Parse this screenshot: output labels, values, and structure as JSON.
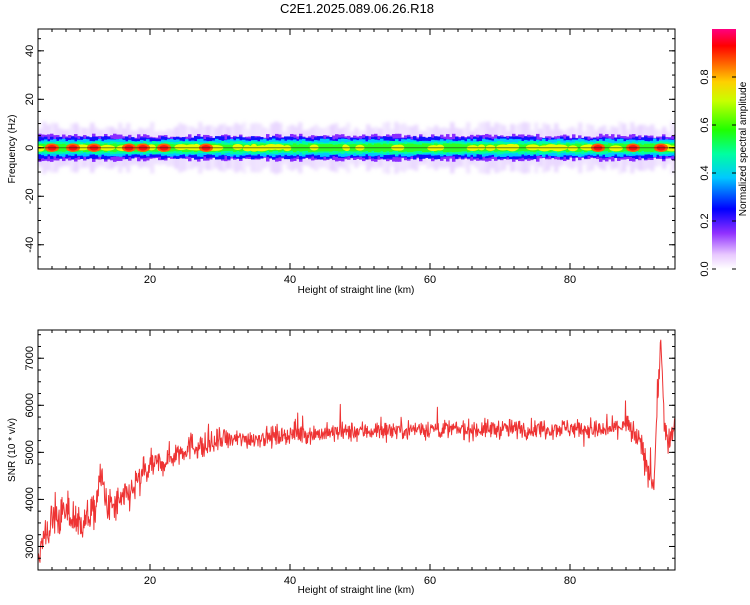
{
  "title": "C2E1.2025.089.06.26.R18",
  "chart_data": [
    {
      "type": "heatmap",
      "xlabel": "Height of straight line (km)",
      "ylabel": "Frequency (Hz)",
      "xlim": [
        4,
        95
      ],
      "ylim": [
        -50,
        49
      ],
      "xticks": [
        "20",
        "40",
        "60",
        "80"
      ],
      "xtick_values": [
        20,
        40,
        60,
        80
      ],
      "yticks": [
        "40",
        "20",
        "0",
        "-20",
        "-40"
      ],
      "ytick_values": [
        40,
        20,
        0,
        -20,
        -40
      ],
      "band_center_hz": 0,
      "band_halfwidth_hz": 3.5,
      "colorbar": {
        "label": "Normalized spectral amplitude",
        "range": [
          0,
          1
        ],
        "ticks": [
          "0.0",
          "0.2",
          "0.4",
          "0.6",
          "0.8"
        ],
        "tick_values": [
          0.0,
          0.2,
          0.4,
          0.6,
          0.8
        ]
      },
      "hotspots_km": [
        6,
        9,
        12,
        17,
        19,
        22,
        28,
        84,
        89,
        93
      ]
    },
    {
      "type": "line",
      "xlabel": "Height of straight line (km)",
      "ylabel": "SNR (10 * v/v)",
      "xlim": [
        4,
        95
      ],
      "ylim": [
        2500,
        7600
      ],
      "xticks": [
        "20",
        "40",
        "60",
        "80"
      ],
      "xtick_values": [
        20,
        40,
        60,
        80
      ],
      "yticks": [
        "3000",
        "4000",
        "5000",
        "6000",
        "7000"
      ],
      "ytick_values": [
        3000,
        4000,
        5000,
        6000,
        7000
      ],
      "color": "#ee3333",
      "x": [
        4,
        6,
        8,
        10,
        12,
        13,
        14,
        16,
        18,
        20,
        22,
        24,
        26,
        28,
        30,
        35,
        40,
        45,
        50,
        55,
        60,
        65,
        70,
        75,
        80,
        85,
        88,
        90,
        91,
        92,
        92.5,
        93,
        93.5,
        94,
        95
      ],
      "y": [
        2800,
        3550,
        3700,
        3500,
        3700,
        4500,
        3800,
        3950,
        4300,
        4700,
        4800,
        5000,
        5150,
        5100,
        5250,
        5300,
        5380,
        5400,
        5450,
        5480,
        5500,
        5480,
        5500,
        5500,
        5520,
        5450,
        5600,
        5200,
        4700,
        4300,
        6200,
        7300,
        5600,
        5100,
        5500
      ]
    }
  ]
}
